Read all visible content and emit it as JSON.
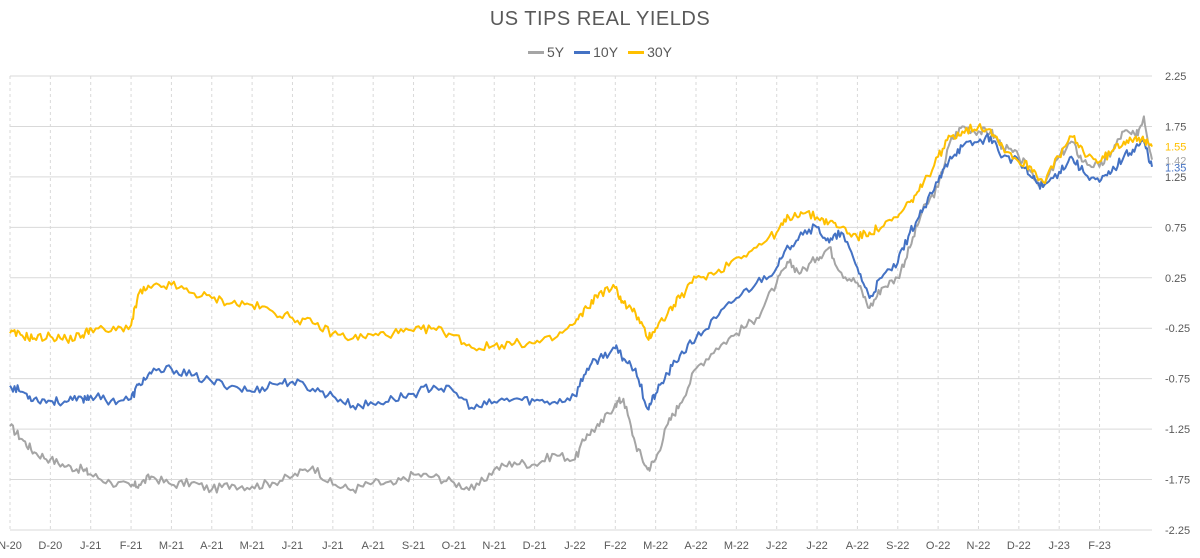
{
  "chart_data": {
    "type": "line",
    "title": "US TIPS REAL YIELDS",
    "xlabel": "",
    "ylabel": "",
    "ylim": [
      -2.25,
      2.25
    ],
    "y_ticks": [
      "2.25",
      "1.75",
      "1.25",
      "0.75",
      "0.25",
      "-0.25",
      "-0.75",
      "-1.25",
      "-1.75",
      "-2.25"
    ],
    "y_tick_values": [
      2.25,
      1.75,
      1.25,
      0.75,
      0.25,
      -0.25,
      -0.75,
      -1.25,
      -1.75,
      -2.25
    ],
    "x_ticks": [
      "N-20",
      "D-20",
      "J-21",
      "F-21",
      "M-21",
      "A-21",
      "M-21",
      "J-21",
      "J-21",
      "A-21",
      "S-21",
      "O-21",
      "N-21",
      "D-21",
      "J-22",
      "F-22",
      "M-22",
      "A-22",
      "M-22",
      "J-22",
      "J-22",
      "A-22",
      "S-22",
      "O-22",
      "N-22",
      "D-22",
      "J-23",
      "F-23"
    ],
    "grid": true,
    "legend_position": "top-center",
    "x_unit": "months since Nov 2020",
    "series": [
      {
        "name": "5Y",
        "color": "#a5a5a5",
        "last_label": "1.42",
        "x": [
          0,
          0.3,
          0.6,
          1.0,
          1.4,
          1.8,
          2.0,
          2.5,
          3.0,
          3.2,
          3.5,
          4.0,
          4.5,
          5.0,
          5.5,
          6.0,
          6.5,
          7.0,
          7.5,
          8.0,
          8.5,
          9.0,
          9.5,
          10.0,
          10.5,
          11.0,
          11.5,
          12.0,
          12.5,
          13.0,
          13.5,
          14.0,
          14.3,
          14.6,
          15.0,
          15.2,
          15.5,
          15.8,
          16.0,
          16.3,
          16.6,
          17.0,
          17.5,
          18.0,
          18.5,
          19.0,
          19.3,
          19.6,
          20.0,
          20.3,
          20.6,
          21.0,
          21.3,
          21.6,
          22.0,
          22.3,
          22.6,
          23.0,
          23.3,
          23.6,
          24.0,
          24.3,
          24.6,
          25.0,
          25.3,
          25.6,
          26.0,
          26.3,
          26.6,
          27.0,
          27.3,
          27.6,
          27.9,
          28.1,
          28.3
        ],
        "values": [
          -1.22,
          -1.35,
          -1.48,
          -1.55,
          -1.62,
          -1.65,
          -1.7,
          -1.78,
          -1.82,
          -1.8,
          -1.72,
          -1.8,
          -1.78,
          -1.85,
          -1.8,
          -1.82,
          -1.78,
          -1.72,
          -1.62,
          -1.8,
          -1.85,
          -1.78,
          -1.8,
          -1.7,
          -1.72,
          -1.78,
          -1.85,
          -1.65,
          -1.58,
          -1.6,
          -1.5,
          -1.55,
          -1.3,
          -1.22,
          -1.0,
          -0.95,
          -1.4,
          -1.65,
          -1.55,
          -1.2,
          -1.0,
          -0.65,
          -0.45,
          -0.3,
          -0.15,
          0.2,
          0.4,
          0.3,
          0.45,
          0.55,
          0.3,
          0.2,
          -0.05,
          0.15,
          0.25,
          0.55,
          0.9,
          1.15,
          1.6,
          1.75,
          1.7,
          1.7,
          1.55,
          1.45,
          1.3,
          1.15,
          1.45,
          1.6,
          1.4,
          1.35,
          1.5,
          1.7,
          1.65,
          1.85,
          1.42
        ]
      },
      {
        "name": "10Y",
        "color": "#4472c4",
        "last_label": "1.35",
        "x": [
          0,
          0.3,
          0.6,
          1.0,
          1.4,
          1.8,
          2.0,
          2.5,
          3.0,
          3.2,
          3.5,
          4.0,
          4.5,
          5.0,
          5.5,
          6.0,
          6.5,
          7.0,
          7.5,
          8.0,
          8.5,
          9.0,
          9.5,
          10.0,
          10.5,
          11.0,
          11.5,
          12.0,
          12.5,
          13.0,
          13.5,
          14.0,
          14.3,
          14.6,
          15.0,
          15.2,
          15.5,
          15.8,
          16.0,
          16.3,
          16.6,
          17.0,
          17.5,
          18.0,
          18.5,
          19.0,
          19.3,
          19.6,
          20.0,
          20.3,
          20.6,
          21.0,
          21.3,
          21.6,
          22.0,
          22.3,
          22.6,
          23.0,
          23.3,
          23.6,
          24.0,
          24.3,
          24.6,
          25.0,
          25.3,
          25.6,
          26.0,
          26.3,
          26.6,
          27.0,
          27.3,
          27.6,
          27.9,
          28.1,
          28.3
        ],
        "values": [
          -0.82,
          -0.88,
          -0.95,
          -0.97,
          -0.98,
          -0.95,
          -0.92,
          -0.97,
          -0.95,
          -0.8,
          -0.7,
          -0.65,
          -0.72,
          -0.78,
          -0.82,
          -0.88,
          -0.8,
          -0.78,
          -0.85,
          -0.92,
          -1.02,
          -1.0,
          -0.95,
          -0.9,
          -0.82,
          -0.88,
          -1.05,
          -0.98,
          -0.95,
          -0.97,
          -0.98,
          -0.92,
          -0.65,
          -0.55,
          -0.45,
          -0.55,
          -0.65,
          -1.05,
          -0.9,
          -0.7,
          -0.52,
          -0.35,
          -0.15,
          0.05,
          0.2,
          0.35,
          0.55,
          0.7,
          0.75,
          0.6,
          0.7,
          0.35,
          0.05,
          0.25,
          0.4,
          0.7,
          0.9,
          1.2,
          1.45,
          1.55,
          1.6,
          1.65,
          1.45,
          1.4,
          1.25,
          1.15,
          1.3,
          1.45,
          1.3,
          1.2,
          1.3,
          1.45,
          1.55,
          1.6,
          1.35
        ]
      },
      {
        "name": "30Y",
        "color": "#ffc000",
        "last_label": "1.55",
        "x": [
          0,
          0.3,
          0.6,
          1.0,
          1.4,
          1.8,
          2.0,
          2.5,
          3.0,
          3.2,
          3.5,
          4.0,
          4.5,
          5.0,
          5.5,
          6.0,
          6.5,
          7.0,
          7.5,
          8.0,
          8.5,
          9.0,
          9.5,
          10.0,
          10.5,
          11.0,
          11.5,
          12.0,
          12.5,
          13.0,
          13.5,
          14.0,
          14.3,
          14.6,
          15.0,
          15.2,
          15.5,
          15.8,
          16.0,
          16.3,
          16.6,
          17.0,
          17.5,
          18.0,
          18.5,
          19.0,
          19.3,
          19.6,
          20.0,
          20.3,
          20.6,
          21.0,
          21.3,
          21.6,
          22.0,
          22.3,
          22.6,
          23.0,
          23.3,
          23.6,
          24.0,
          24.3,
          24.6,
          25.0,
          25.3,
          25.6,
          26.0,
          26.3,
          26.6,
          27.0,
          27.3,
          27.6,
          27.9,
          28.1,
          28.3
        ],
        "values": [
          -0.3,
          -0.32,
          -0.35,
          -0.33,
          -0.36,
          -0.32,
          -0.25,
          -0.28,
          -0.22,
          0.1,
          0.15,
          0.18,
          0.1,
          0.05,
          0.0,
          -0.02,
          -0.08,
          -0.15,
          -0.2,
          -0.3,
          -0.35,
          -0.32,
          -0.3,
          -0.28,
          -0.25,
          -0.32,
          -0.45,
          -0.42,
          -0.4,
          -0.4,
          -0.35,
          -0.2,
          -0.05,
          0.1,
          0.15,
          0.0,
          -0.1,
          -0.35,
          -0.25,
          -0.1,
          0.05,
          0.25,
          0.3,
          0.45,
          0.55,
          0.7,
          0.85,
          0.9,
          0.85,
          0.8,
          0.75,
          0.65,
          0.7,
          0.75,
          0.85,
          1.0,
          1.15,
          1.45,
          1.65,
          1.7,
          1.75,
          1.72,
          1.55,
          1.4,
          1.35,
          1.2,
          1.45,
          1.65,
          1.5,
          1.4,
          1.5,
          1.6,
          1.65,
          1.6,
          1.55
        ]
      }
    ]
  }
}
